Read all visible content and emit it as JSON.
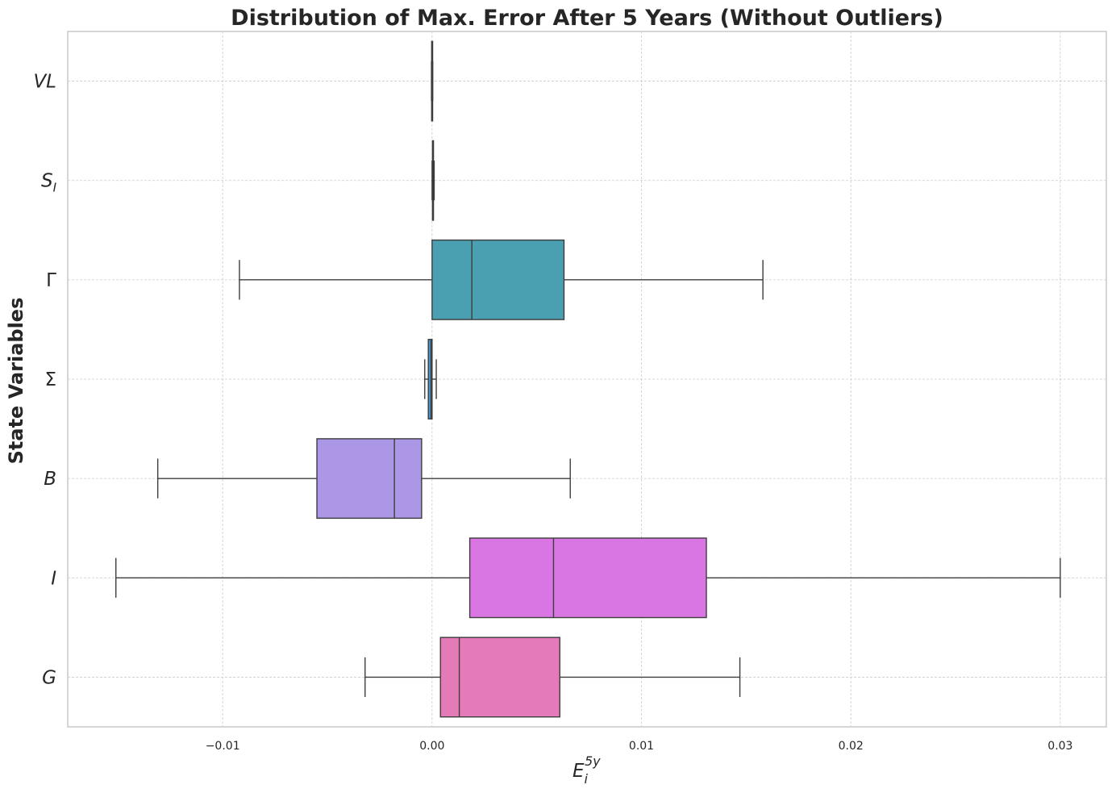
{
  "chart_data": {
    "type": "boxplot",
    "orientation": "horizontal",
    "title": "Distribution of Max. Error After 5 Years (Without Outliers)",
    "xlabel": {
      "base": "E",
      "sub": "i",
      "sup": "5y"
    },
    "ylabel": "State Variables",
    "xlim": [
      -0.0174,
      0.0322
    ],
    "x_ticks": [
      -0.01,
      0.0,
      0.01,
      0.02,
      0.03
    ],
    "x_tick_labels": [
      "−0.01",
      "0.00",
      "0.01",
      "0.02",
      "0.03"
    ],
    "grid": true,
    "categories": [
      {
        "label": "VL",
        "base": "VL",
        "sub": "",
        "italic": true,
        "color": "#b8a93f",
        "whislo": -3e-05,
        "q1": -2e-05,
        "med": 0.0,
        "q3": 2e-05,
        "whishi": 3e-05
      },
      {
        "label": "S_I",
        "base": "S",
        "sub": "I",
        "italic": true,
        "color": "#7ea73c",
        "whislo": 0.0,
        "q1": 2e-05,
        "med": 4e-05,
        "q3": 6e-05,
        "whishi": 0.0001
      },
      {
        "label": "Γ",
        "base": "Γ",
        "sub": "",
        "italic": false,
        "color": "#4a9fb0",
        "whislo": -0.0092,
        "q1": 0.0,
        "med": 0.0019,
        "q3": 0.0063,
        "whishi": 0.0158
      },
      {
        "label": "Σ",
        "base": "Σ",
        "sub": "",
        "italic": false,
        "color": "#4a95c8",
        "whislo": -0.00035,
        "q1": -0.00018,
        "med": -5e-05,
        "q3": 0.0,
        "whishi": 0.0002
      },
      {
        "label": "B",
        "base": "B",
        "sub": "",
        "italic": true,
        "color": "#ab97e6",
        "whislo": -0.0131,
        "q1": -0.0055,
        "med": -0.0018,
        "q3": -0.0005,
        "whishi": 0.0066
      },
      {
        "label": "I",
        "base": "I",
        "sub": "",
        "italic": true,
        "color": "#d976e4",
        "whislo": -0.0151,
        "q1": 0.0018,
        "med": 0.0058,
        "q3": 0.0131,
        "whishi": 0.03
      },
      {
        "label": "G",
        "base": "G",
        "sub": "",
        "italic": true,
        "color": "#e57ab8",
        "whislo": -0.0032,
        "q1": 0.0004,
        "med": 0.0013,
        "q3": 0.0061,
        "whishi": 0.0147
      }
    ]
  }
}
